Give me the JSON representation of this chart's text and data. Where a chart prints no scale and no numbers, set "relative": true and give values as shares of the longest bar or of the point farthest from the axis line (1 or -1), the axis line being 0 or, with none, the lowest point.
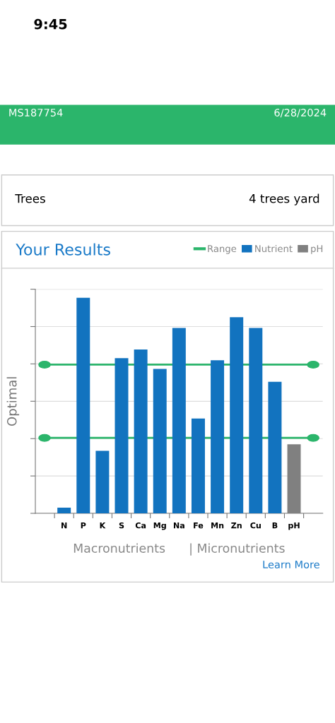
{
  "chart_data": {
    "type": "bar",
    "title": "Your Results",
    "ylabel": "Optimal",
    "xlabel": "Macronutrients      | Micronutrients",
    "categories": [
      "N",
      "P",
      "K",
      "S",
      "Ca",
      "Mg",
      "Na",
      "Fe",
      "Mn",
      "Zn",
      "Cu",
      "B",
      "pH"
    ],
    "relative": true,
    "stacked": true,
    "series": [
      {
        "name": "Nutrient",
        "color": "#1273bf",
        "values": [
          0.026,
          1,
          0.29,
          0.72,
          0.76,
          0.67,
          0.86,
          0.44,
          0.71,
          0.91,
          0.86,
          0.61,
          null
        ]
      },
      {
        "name": "pH",
        "color": "#808080",
        "values": [
          null,
          null,
          null,
          null,
          null,
          null,
          null,
          null,
          null,
          null,
          null,
          null,
          0.32
        ]
      }
    ],
    "ref_lines": [
      {
        "axis": "y",
        "value": 0.69,
        "label": "Range",
        "color": "#2bb56b"
      },
      {
        "axis": "y",
        "value": 0.35,
        "color": "#2bb56b"
      }
    ],
    "grid": "y",
    "legend": "top right",
    "annotations": [
      "9:45",
      "MS187754",
      "6/28/2024",
      "Trees",
      "4 trees yard",
      "Learn More"
    ]
  }
}
